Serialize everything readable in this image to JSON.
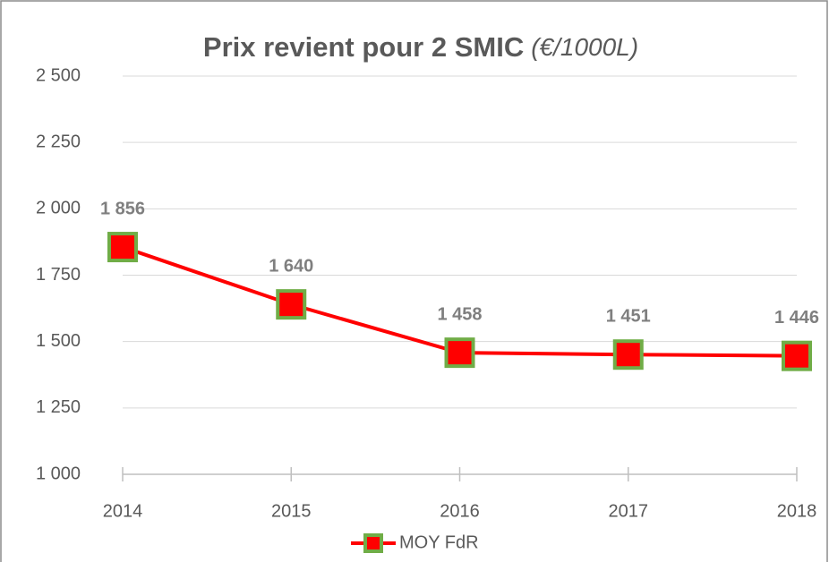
{
  "chart_data": {
    "type": "line",
    "title": "Prix revient pour 2 SMIC",
    "title_unit": "(€/1000L)",
    "categories": [
      "2014",
      "2015",
      "2016",
      "2017",
      "2018"
    ],
    "series": [
      {
        "name": "MOY FdR",
        "color": "#ff0000",
        "marker_color": "#ff0000",
        "marker_edge_color": "#70ad47",
        "values": [
          1856,
          1640,
          1458,
          1451,
          1446
        ],
        "value_labels": [
          "1 856",
          "1 640",
          "1 458",
          "1 451",
          "1 446"
        ]
      }
    ],
    "ylim": [
      1000,
      2500
    ],
    "yticks": [
      {
        "value": 1000,
        "label": "1 000"
      },
      {
        "value": 1250,
        "label": "1 250"
      },
      {
        "value": 1500,
        "label": "1 500"
      },
      {
        "value": 1750,
        "label": "1 750"
      },
      {
        "value": 2000,
        "label": "2 000"
      },
      {
        "value": 2250,
        "label": "2 250"
      },
      {
        "value": 2500,
        "label": "2 500"
      }
    ],
    "grid": true,
    "legend": "bottom"
  }
}
